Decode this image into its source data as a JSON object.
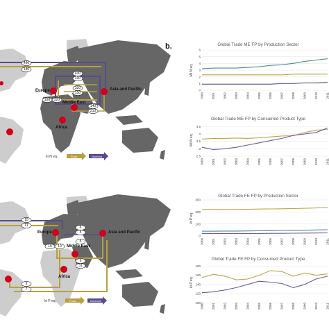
{
  "colors": {
    "land_dark": "#666666",
    "land_light": "#cdcdcd",
    "ocean": "#ffffff",
    "node": "#d0021b",
    "food": "#b8a040",
    "nonfood": "#5a4a8a",
    "teal": "#4e8a86",
    "olive": "#b7a64a",
    "purple": "#6c5a9c"
  },
  "panel_b": {
    "letter": "b."
  },
  "maps": [
    {
      "id": "nitrogen",
      "regions": [
        "Europe",
        "Middle East",
        "Asia and Pacific",
        "Africa"
      ],
      "flows": [
        "490",
        "180",
        "430",
        "100",
        "320",
        "150",
        "190",
        "320",
        "140",
        "210"
      ],
      "legend": {
        "unit": "kt N eq.",
        "food": "Food",
        "nonfood": "Nonfood"
      }
    },
    {
      "id": "phosphorus",
      "regions": [
        "Europe",
        "Middle East",
        "Asia and Pacific",
        "Africa"
      ],
      "flows": [
        "15",
        "11",
        "6",
        "5",
        "5",
        "15",
        "10",
        "6",
        "31",
        "9",
        "7"
      ],
      "legend": {
        "unit": "kt P eq.",
        "food": "Food",
        "nonfood": "Nonfood"
      }
    }
  ],
  "chart_data": [
    {
      "type": "line",
      "title": "Global Trade ME FP by Production Sector",
      "ylabel": "Mt N eq.",
      "x": [
        "2000",
        "2001",
        "2002",
        "2003",
        "2004",
        "2005",
        "2006",
        "2007",
        "2008",
        "2009",
        "2010",
        "2011"
      ],
      "yticks": [
        "0",
        "1",
        "2",
        "3",
        "4",
        "5",
        "6"
      ],
      "ylim": [
        0,
        6
      ],
      "series": [
        {
          "color": "#4e8a86",
          "values": [
            3.2,
            3.3,
            3.3,
            3.3,
            3.4,
            3.5,
            3.7,
            3.8,
            4.0,
            4.3,
            4.5,
            4.7
          ]
        },
        {
          "color": "#b7a64a",
          "values": [
            2.3,
            2.3,
            2.3,
            2.3,
            2.3,
            2.3,
            2.3,
            2.3,
            2.4,
            2.4,
            2.4,
            2.4
          ]
        },
        {
          "color": "#6c5a9c",
          "values": [
            0.9,
            0.9,
            0.9,
            0.9,
            0.9,
            0.9,
            0.9,
            1.0,
            1.0,
            1.1,
            1.1,
            1.2
          ]
        }
      ]
    },
    {
      "type": "line",
      "title": "Global Trade ME FP by Consumed Product Type",
      "ylabel": "Mt N eq.",
      "x": [
        "2000",
        "2001",
        "2002",
        "2003",
        "2004",
        "2005",
        "2006",
        "2007",
        "2008",
        "2009",
        "2010",
        "2011"
      ],
      "yticks": [
        "2.5",
        "3",
        "3.5",
        "4",
        "4.5"
      ],
      "ylim": [
        2.5,
        4.7
      ],
      "series": [
        {
          "color": "#b7a64a",
          "values": [
            3.65,
            3.7,
            3.7,
            3.72,
            3.7,
            3.74,
            3.8,
            3.86,
            3.88,
            4.1,
            4.25,
            4.3
          ]
        },
        {
          "color": "#6c5a9c",
          "values": [
            3.1,
            2.95,
            3.0,
            3.1,
            3.25,
            3.4,
            3.55,
            3.7,
            3.9,
            4.0,
            4.1,
            4.4
          ]
        }
      ]
    },
    {
      "type": "line",
      "title": "Global Trade FE FP by Production Sector",
      "ylabel": "kt P eq.",
      "x": [
        "2000",
        "2001",
        "2002",
        "2003",
        "2004",
        "2005",
        "2006",
        "2007",
        "2008",
        "2009",
        "2010",
        "2011"
      ],
      "yticks": [
        "0",
        "100",
        "200",
        "300"
      ],
      "ylim": [
        0,
        300
      ],
      "series": [
        {
          "color": "#b7a64a",
          "values": [
            220,
            222,
            220,
            222,
            222,
            224,
            225,
            226,
            228,
            230,
            233,
            236
          ]
        },
        {
          "color": "#4e8a86",
          "values": [
            40,
            40,
            41,
            41,
            42,
            43,
            44,
            46,
            47,
            48,
            50,
            52
          ]
        },
        {
          "color": "#6c5a9c",
          "values": [
            20,
            20,
            20,
            21,
            21,
            21,
            22,
            22,
            23,
            24,
            25,
            26
          ]
        }
      ]
    },
    {
      "type": "line",
      "title": "Global Trade FE FP by Consumed Product Type",
      "ylabel": "kt P eq.",
      "x": [
        "2000",
        "2001",
        "2002",
        "2003",
        "2004",
        "2005",
        "2006",
        "2007",
        "2008",
        "2009",
        "2010",
        "2011"
      ],
      "yticks": [
        "100",
        "120",
        "140",
        "160",
        "180"
      ],
      "ylim": [
        105,
        185
      ],
      "series": [
        {
          "color": "#b7a64a",
          "values": [
            155,
            162,
            158,
            150,
            152,
            160,
            170,
            168,
            158,
            165,
            160,
            163
          ]
        },
        {
          "color": "#6c5a9c",
          "values": [
            122,
            124,
            128,
            133,
            140,
            147,
            145,
            142,
            133,
            140,
            152,
            158
          ]
        }
      ]
    }
  ]
}
